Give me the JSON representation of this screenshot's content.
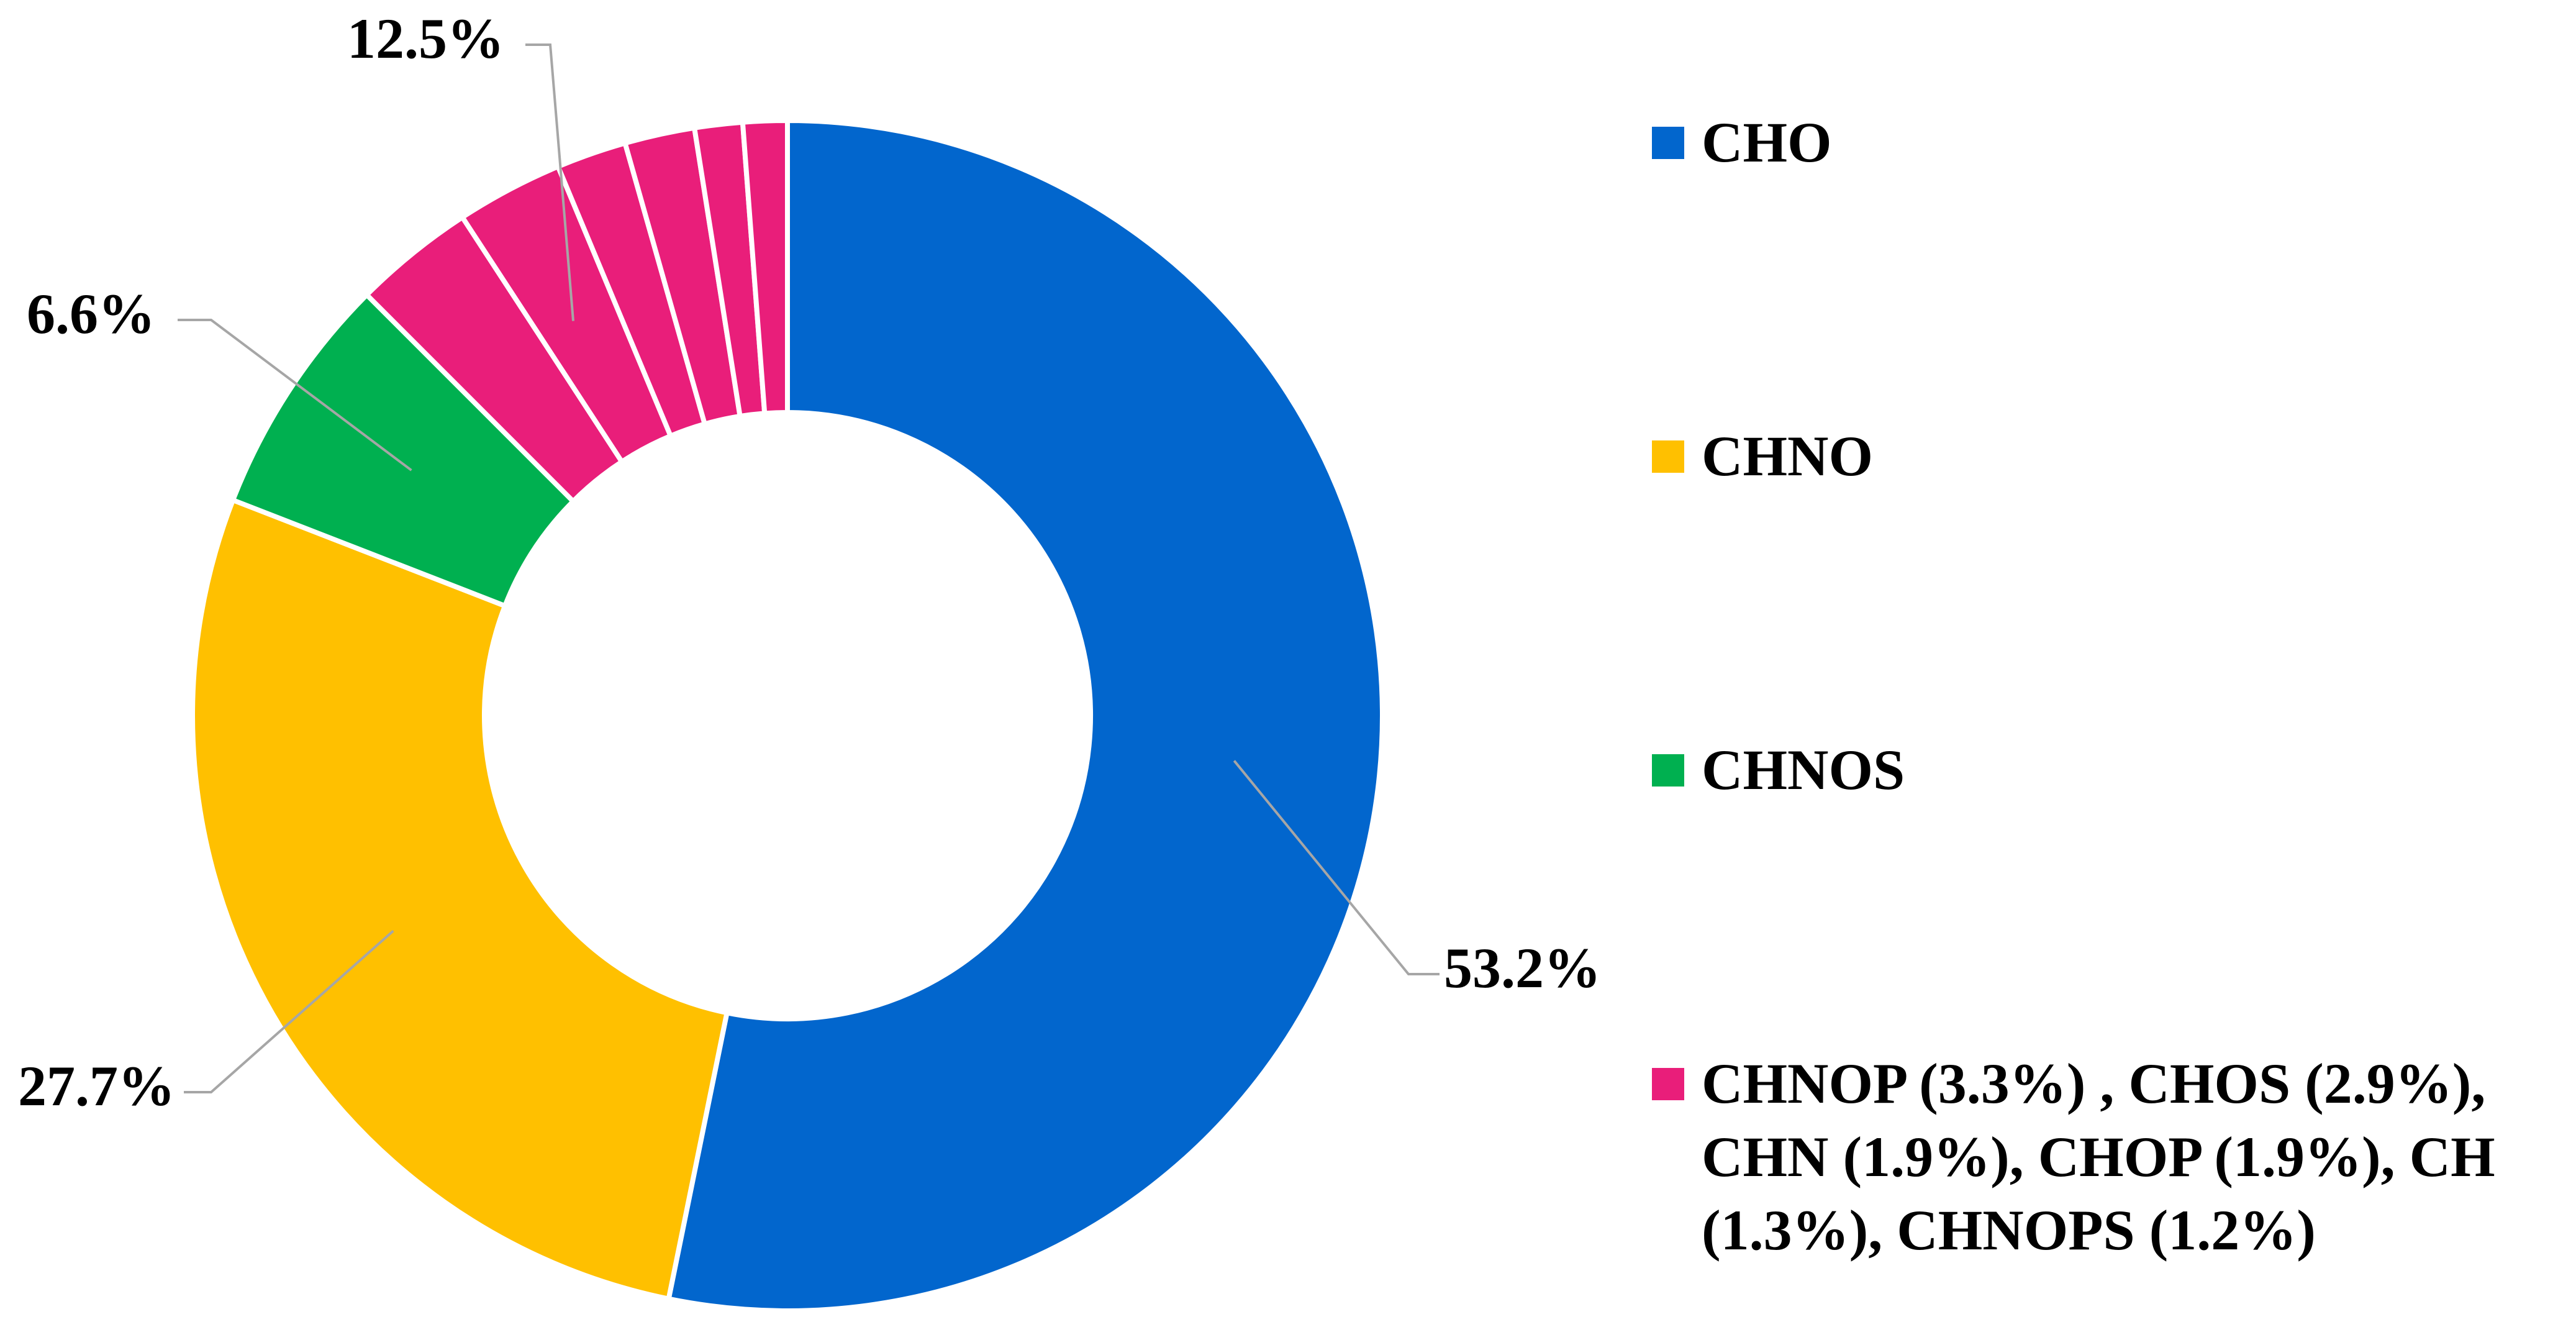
{
  "chart_data": {
    "type": "donut",
    "title": "",
    "slices": [
      {
        "name": "CHO",
        "value": 53.2,
        "color": "#0266CD",
        "data_label": "53.2%"
      },
      {
        "name": "CHNO",
        "value": 27.7,
        "color": "#FFC000",
        "data_label": "27.7%"
      },
      {
        "name": "CHNOS",
        "value": 6.6,
        "color": "#00B050",
        "data_label": "6.6%"
      },
      {
        "name": "CHNOP",
        "value": 3.3,
        "color": "#E91E7A"
      },
      {
        "name": "CHOS",
        "value": 2.9,
        "color": "#E91E7A"
      },
      {
        "name": "CHN",
        "value": 1.9,
        "color": "#E91E7A"
      },
      {
        "name": "CHOP",
        "value": 1.9,
        "color": "#E91E7A"
      },
      {
        "name": "CH",
        "value": 1.3,
        "color": "#E91E7A"
      },
      {
        "name": "CHNOPS",
        "value": 1.2,
        "color": "#E91E7A"
      }
    ],
    "group_label": "12.5%",
    "legend_position": "right",
    "legend": [
      {
        "color": "#0266CD",
        "lines": [
          "CHO"
        ]
      },
      {
        "color": "#FFC000",
        "lines": [
          "CHNO"
        ]
      },
      {
        "color": "#00B050",
        "lines": [
          "CHNOS"
        ]
      },
      {
        "color": "#E91E7A",
        "lines": [
          "CHNOP (3.3%) , CHOS (2.9%),",
          "CHN (1.9%), CHOP (1.9%), CH",
          "(1.3%), CHNOPS (1.2%)"
        ]
      }
    ]
  }
}
